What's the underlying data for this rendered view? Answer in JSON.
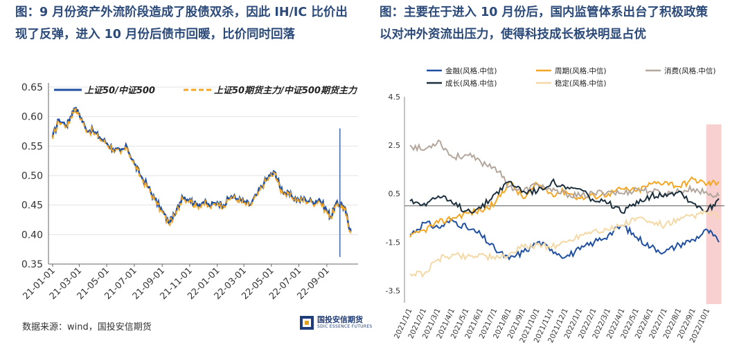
{
  "left_title": {
    "line1": "图：9 月份资产外流阶段造成了股债双杀，因此 IH/IC 比价出",
    "line2": "现了反弹，进入 10 月份后债市回暖，比价同时回落"
  },
  "right_title": {
    "line1": "图：主要在于进入 10 月份后，国内监管体系出台了积极政策",
    "line2": "以对冲外资流出压力，使得科技成长板块明显占优"
  },
  "source_text": "数据来源：wind，国投安信期货",
  "logo": {
    "cn": "国投安信期货",
    "en": "SDIC ESSENCE FUTURES"
  },
  "colors": {
    "blue": "#1f4fa1",
    "orange": "#f5a623",
    "gray_brown": "#b3a69c",
    "dark_navy": "#1b2e3c",
    "wheat": "#f4d9a6",
    "highlight": "#f8d0d0",
    "headline": "#2b4a7a"
  },
  "chart_data": [
    {
      "type": "line",
      "title": "",
      "legend": [
        "上证50/中证500",
        "上证50期货主力/中证500期货主力"
      ],
      "legend_position": "top",
      "ylim": [
        0.35,
        0.65
      ],
      "yticks": [
        "0.65",
        "0.60",
        "0.55",
        "0.50",
        "0.45",
        "0.40",
        "0.35"
      ],
      "xticks": [
        "21-01-01",
        "21-03-01",
        "21-05-01",
        "21-07-01",
        "21-09-01",
        "21-11-01",
        "22-01-01",
        "22-03-01",
        "22-05-01",
        "22-07-01",
        "22-09-01"
      ],
      "x": [
        "2021-01-01",
        "2021-01-15",
        "2021-02-01",
        "2021-02-10",
        "2021-02-18",
        "2021-03-01",
        "2021-03-15",
        "2021-04-01",
        "2021-04-15",
        "2021-05-01",
        "2021-05-15",
        "2021-06-01",
        "2021-06-15",
        "2021-07-01",
        "2021-07-15",
        "2021-08-01",
        "2021-08-15",
        "2021-09-01",
        "2021-09-15",
        "2021-10-01",
        "2021-10-15",
        "2021-11-01",
        "2021-11-15",
        "2021-12-01",
        "2021-12-15",
        "2022-01-01",
        "2022-01-15",
        "2022-02-01",
        "2022-02-15",
        "2022-03-01",
        "2022-03-15",
        "2022-04-01",
        "2022-04-15",
        "2022-04-28",
        "2022-05-10",
        "2022-05-20",
        "2022-06-01",
        "2022-06-15",
        "2022-07-01",
        "2022-07-15",
        "2022-08-01",
        "2022-08-15",
        "2022-09-01",
        "2022-09-10",
        "2022-09-20",
        "2022-10-01",
        "2022-10-10",
        "2022-10-17",
        "2022-10-24"
      ],
      "series": [
        {
          "name": "上证50/中证500",
          "values": [
            0.565,
            0.595,
            0.585,
            0.6,
            0.615,
            0.605,
            0.58,
            0.575,
            0.565,
            0.555,
            0.545,
            0.54,
            0.548,
            0.52,
            0.5,
            0.48,
            0.46,
            0.44,
            0.42,
            0.435,
            0.465,
            0.46,
            0.45,
            0.455,
            0.448,
            0.455,
            0.45,
            0.465,
            0.46,
            0.455,
            0.45,
            0.47,
            0.488,
            0.5,
            0.505,
            0.48,
            0.47,
            0.465,
            0.458,
            0.46,
            0.455,
            0.46,
            0.44,
            0.43,
            0.45,
            0.452,
            0.445,
            0.425,
            0.405
          ]
        },
        {
          "name": "上证50期货主力/中证500期货主力",
          "values": [
            0.562,
            0.593,
            0.583,
            0.598,
            0.613,
            0.603,
            0.578,
            0.573,
            0.562,
            0.553,
            0.543,
            0.538,
            0.546,
            0.518,
            0.498,
            0.478,
            0.458,
            0.438,
            0.418,
            0.433,
            0.462,
            0.458,
            0.448,
            0.453,
            0.446,
            0.453,
            0.448,
            0.463,
            0.458,
            0.453,
            0.448,
            0.468,
            0.486,
            0.498,
            0.503,
            0.478,
            0.468,
            0.463,
            0.456,
            0.458,
            0.453,
            0.458,
            0.438,
            0.428,
            0.448,
            0.45,
            0.443,
            0.423,
            0.402
          ]
        }
      ]
    },
    {
      "type": "line",
      "title": "",
      "legend": [
        "金融(风格.中信)",
        "周期(风格.中信)",
        "消费(风格.中信)",
        "成长(风格.中信)",
        "稳定(风格.中信)"
      ],
      "legend_position": "top",
      "ylim": [
        -4.0,
        4.5
      ],
      "yticks": [
        "4.5",
        "2.5",
        "0.5",
        "-1.5",
        "-3.5"
      ],
      "xticks": [
        "2021/1/1",
        "2021/2/1",
        "2021/3/1",
        "2021/4/1",
        "2021/5/1",
        "2021/6/1",
        "2021/7/1",
        "2021/8/1",
        "2021/9/1",
        "2021/10/1",
        "2021/11/1",
        "2021/12/1",
        "2022/1/1",
        "2022/2/1",
        "2022/3/1",
        "2022/4/1",
        "2022/5/1",
        "2022/6/1",
        "2022/7/1",
        "2022/8/1",
        "2022/9/1",
        "2022/10/1"
      ],
      "x_months": [
        0,
        1,
        2,
        3,
        4,
        5,
        6,
        7,
        8,
        9,
        10,
        11,
        12,
        13,
        14,
        15,
        16,
        17,
        18,
        19,
        20,
        21,
        21.8
      ],
      "series": [
        {
          "name": "金融(风格.中信)",
          "values": [
            -1.2,
            -0.7,
            -0.9,
            -0.6,
            -0.9,
            -1.2,
            -1.8,
            -2.2,
            -1.9,
            -1.5,
            -1.8,
            -2.1,
            -1.8,
            -1.5,
            -1.2,
            -0.8,
            -1.3,
            -1.7,
            -1.9,
            -1.6,
            -1.4,
            -1.0,
            -1.5
          ]
        },
        {
          "name": "周期(风格.中信)",
          "values": [
            -1.3,
            -1.0,
            -0.7,
            -0.5,
            -0.3,
            -0.2,
            0.1,
            1.0,
            0.3,
            0.9,
            0.5,
            0.6,
            0.3,
            0.4,
            0.5,
            0.7,
            0.6,
            0.9,
            1.0,
            0.8,
            1.1,
            0.9,
            1.0
          ]
        },
        {
          "name": "消费(风格.中信)",
          "values": [
            2.5,
            2.3,
            2.7,
            2.0,
            2.1,
            1.8,
            1.6,
            0.8,
            0.6,
            0.9,
            0.6,
            0.5,
            0.4,
            0.5,
            0.6,
            0.5,
            0.7,
            0.6,
            0.5,
            0.6,
            0.7,
            0.5,
            0.4
          ]
        },
        {
          "name": "成长(风格.中信)",
          "values": [
            0.2,
            0.1,
            0.4,
            0.1,
            -0.2,
            -0.1,
            0.5,
            1.0,
            0.6,
            0.6,
            1.0,
            0.7,
            0.7,
            0.2,
            0.1,
            -0.3,
            0.2,
            0.4,
            0.5,
            0.6,
            0.1,
            -0.2,
            0.3
          ]
        },
        {
          "name": "稳定(风格.中信)",
          "values": [
            -2.8,
            -2.8,
            -2.2,
            -2.0,
            -2.1,
            -2.0,
            -2.2,
            -2.0,
            -1.7,
            -1.6,
            -1.7,
            -1.5,
            -1.2,
            -1.0,
            -1.0,
            -0.8,
            -0.5,
            -0.7,
            -0.8,
            -0.6,
            -0.4,
            -0.3,
            -0.4
          ]
        }
      ]
    }
  ]
}
